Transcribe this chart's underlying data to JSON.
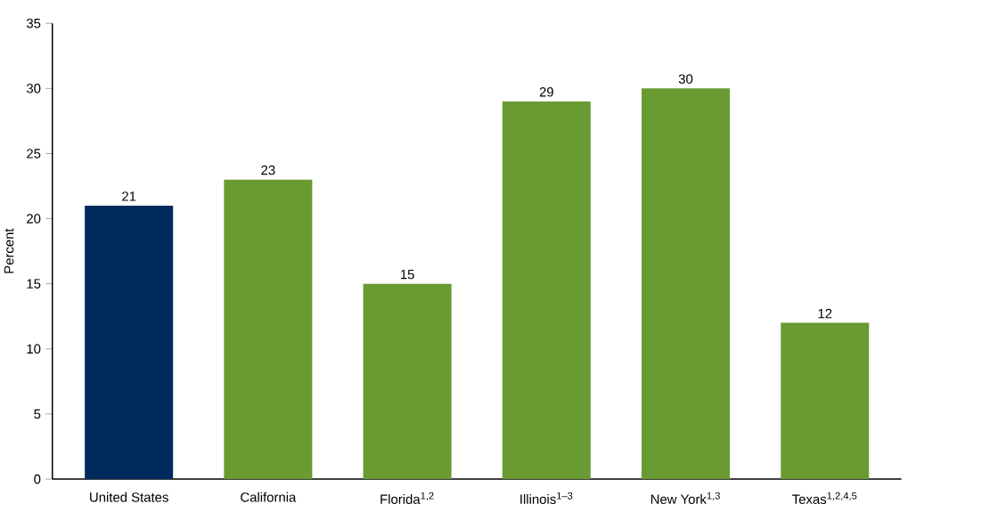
{
  "chart_data": {
    "type": "bar",
    "ylabel": "Percent",
    "categories": [
      "United States",
      "California",
      "Florida$^{1,2}$",
      "Illinois$^{1–3}$",
      "New York$^{1,3}$",
      "Texas$^{1,2,4,5}$"
    ],
    "values": [
      21,
      23,
      15,
      29,
      30,
      12
    ],
    "colors": [
      "#002a5c",
      "#6a9a32",
      "#6a9a32",
      "#6a9a32",
      "#6a9a32",
      "#6a9a32"
    ],
    "ylim": [
      0,
      35
    ],
    "yticks": [
      0,
      5,
      10,
      15,
      20,
      25,
      30,
      35
    ],
    "data_labels": true
  }
}
